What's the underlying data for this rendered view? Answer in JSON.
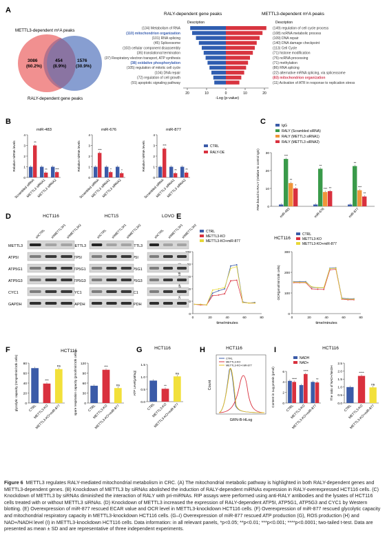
{
  "panels": {
    "A": "A",
    "B": "B",
    "C": "C",
    "D": "D",
    "E": "E",
    "F": "F",
    "G": "G",
    "H": "H",
    "I": "I"
  },
  "venn": {
    "label_top": "METTL3-dependent m⁶A peaks",
    "label_bottom": "RALY-dependent gene peaks",
    "left_count": "3086",
    "left_pct": "(60.2%)",
    "mid_count": "454",
    "mid_pct": "(8.9%)",
    "right_count": "1576",
    "right_pct": "(30.9%)",
    "colors": {
      "left": "#f08a8a",
      "right": "#7a93cc"
    }
  },
  "butterfly": {
    "title_left": "RALY-dependent gene peaks",
    "title_right": "METTL3-dependent m⁶A peaks",
    "desc_header": "Description",
    "xlabel": "-Log (p-value)",
    "ticks_left": [
      "20",
      "10",
      "0"
    ],
    "ticks_right": [
      "0",
      "10",
      "20"
    ],
    "highlight_color_left": "#3a5fb0",
    "highlight_color_right": "#d0334a",
    "left_terms": [
      {
        "text": "(134) Metabolism of RNA",
        "v": 18.5,
        "hl": false
      },
      {
        "text": "(110) mitochondrion organization",
        "v": 17.5,
        "hl": true
      },
      {
        "text": "(101) RNA splicing",
        "v": 15.5,
        "hl": false
      },
      {
        "text": "(45) Spliceosome",
        "v": 14.0,
        "hl": false
      },
      {
        "text": "(103) cellular component disassembly",
        "v": 12.5,
        "hl": false
      },
      {
        "text": "(36) translational termination",
        "v": 11.5,
        "hl": false
      },
      {
        "text": "(37) Respiratory electron transport, ATP synthesis",
        "v": 10.5,
        "hl": false
      },
      {
        "text": "(38) oxidative phosphorylation",
        "v": 9.5,
        "hl": true
      },
      {
        "text": "(105) regulation of mitotic cell cycle",
        "v": 8.5,
        "hl": false
      },
      {
        "text": "(104) DNA repair",
        "v": 7.5,
        "hl": false
      },
      {
        "text": "(72) regulation of cell growth",
        "v": 6.5,
        "hl": false
      },
      {
        "text": "(91) apoptotic signaling pathway",
        "v": 6.0,
        "hl": false
      }
    ],
    "right_terms": [
      {
        "text": "(149) regulation of cell cycle process",
        "v": 21.0,
        "hl": false
      },
      {
        "text": "(108) ncRNA metabolic process",
        "v": 19.0,
        "hl": false
      },
      {
        "text": "(109) DNA repair",
        "v": 17.5,
        "hl": false
      },
      {
        "text": "(140) DNA damage checkpoint",
        "v": 16.0,
        "hl": false
      },
      {
        "text": "(113) Cell Cycle",
        "v": 15.0,
        "hl": false
      },
      {
        "text": "(71) histone modification",
        "v": 14.0,
        "hl": false
      },
      {
        "text": "(75) ncRNA processing",
        "v": 12.5,
        "hl": false
      },
      {
        "text": "(71) methylation",
        "v": 11.5,
        "hl": false
      },
      {
        "text": "(86) RNA splicing",
        "v": 10.5,
        "hl": false
      },
      {
        "text": "(22) alternative mRNA splicing, via spliceosome",
        "v": 9.5,
        "hl": false
      },
      {
        "text": "(83) mitochondrion organization",
        "v": 8.0,
        "hl": true
      },
      {
        "text": "(11) Activation of ATR in response to replication stress",
        "v": 7.0,
        "hl": false
      }
    ]
  },
  "chart_data": [
    {
      "panel": "B",
      "type": "bar",
      "title": "miR-483",
      "ylabel": "Relative miRNA levels",
      "ylim": [
        0,
        4
      ],
      "ticks": [
        "0",
        "1",
        "2",
        "3",
        "4"
      ],
      "categories": [
        "Scrambled siRNA",
        "METTL3 siRNA1",
        "METTL3 siRNA2"
      ],
      "series": [
        {
          "name": "CTRL",
          "values": [
            1.0,
            1.0,
            1.0
          ]
        },
        {
          "name": "RALY-OE",
          "values": [
            3.0,
            0.45,
            0.5
          ]
        }
      ],
      "sig": [
        "**",
        "**",
        "***",
        "*"
      ]
    },
    {
      "panel": "B",
      "type": "bar",
      "title": "miR-676",
      "ylabel": "Relative miRNA levels",
      "ylim": [
        0,
        4
      ],
      "ticks": [
        "0",
        "1",
        "2",
        "3",
        "4"
      ],
      "categories": [
        "Scrambled siRNA",
        "METTL3 siRNA1",
        "METTL3 siRNA2"
      ],
      "series": [
        {
          "name": "CTRL",
          "values": [
            1.0,
            1.0,
            1.0
          ]
        },
        {
          "name": "RALY-OE",
          "values": [
            2.3,
            0.5,
            0.4
          ]
        }
      ],
      "sig": [
        "***",
        "*",
        "*",
        "**"
      ]
    },
    {
      "panel": "B",
      "type": "bar",
      "title": "miR-877",
      "ylabel": "Relative miRNA levels",
      "ylim": [
        0,
        4
      ],
      "ticks": [
        "0",
        "1",
        "2",
        "3",
        "4"
      ],
      "categories": [
        "Scrambled siRNA",
        "METTL3 siRNA1",
        "METTL3 siRNA2"
      ],
      "series": [
        {
          "name": "CTRL",
          "values": [
            1.0,
            1.0,
            1.0
          ]
        },
        {
          "name": "RALY-OE",
          "values": [
            2.7,
            0.4,
            0.45
          ]
        }
      ],
      "sig": [
        "***",
        "**",
        "**",
        "***"
      ]
    },
    {
      "panel": "C",
      "type": "bar",
      "ylabel": "RNA bound to RALY (relative to control IgG)",
      "ylim": [
        0,
        30
      ],
      "ticks": [
        "0",
        "10",
        "20",
        "30"
      ],
      "categories": [
        "miR-483",
        "miR-676",
        "miR-877"
      ],
      "series": [
        {
          "name": "IgG",
          "values": [
            1,
            1,
            1
          ]
        },
        {
          "name": "RALY (Scrambled siRNA)",
          "values": [
            26.5,
            21,
            22.5
          ]
        },
        {
          "name": "RALY (METTL3 siRNA1)",
          "values": [
            13,
            8,
            9
          ]
        },
        {
          "name": "RALY (METTL3 siRNA2)",
          "values": [
            10,
            8.5,
            5.5
          ]
        }
      ],
      "sig": [
        "***",
        "**",
        "*",
        "**",
        "***",
        "**",
        "**",
        "***",
        "**"
      ]
    },
    {
      "panel": "E",
      "type": "line",
      "title": "HCT116",
      "xlabel": "time/minutes",
      "ylabel": "ECAR(mmpH/min/10k cells)",
      "xlim": [
        0,
        80
      ],
      "ylim": [
        0,
        100
      ],
      "xticks": [
        "0",
        "20",
        "40",
        "60",
        "80"
      ],
      "yticks": [
        "0",
        "20",
        "40",
        "60",
        "80",
        "100"
      ],
      "x": [
        2,
        9,
        16,
        23,
        30,
        37,
        44,
        51,
        58,
        65,
        72
      ],
      "series": [
        {
          "name": "CTRL",
          "values": [
            15,
            15,
            14,
            33,
            37,
            40,
            77,
            79,
            19,
            17,
            18
          ]
        },
        {
          "name": "METTL3-KO",
          "values": [
            15,
            14,
            14,
            29,
            30,
            32,
            53,
            54,
            18,
            17,
            17
          ]
        },
        {
          "name": "METTL3-KO+miR-877",
          "values": [
            15,
            15,
            14,
            38,
            40,
            42,
            73,
            76,
            18,
            17,
            17
          ]
        }
      ]
    },
    {
      "panel": "E",
      "type": "line",
      "xlabel": "time/minutes",
      "ylabel": "OCR(pmol/min/10k cells)",
      "xlim": [
        0,
        80
      ],
      "ylim": [
        0,
        300
      ],
      "xticks": [
        "0",
        "20",
        "40",
        "60",
        "80"
      ],
      "yticks": [
        "0",
        "100",
        "200",
        "300"
      ],
      "x": [
        2,
        9,
        16,
        23,
        30,
        37,
        44,
        51,
        58,
        65,
        72
      ],
      "series": [
        {
          "name": "CTRL",
          "values": [
            155,
            155,
            155,
            128,
            125,
            125,
            220,
            222,
            75,
            72,
            72
          ]
        },
        {
          "name": "METTL3-KO",
          "values": [
            150,
            150,
            150,
            120,
            118,
            117,
            212,
            215,
            70,
            67,
            67
          ]
        },
        {
          "name": "METTL3-KO+miR-877",
          "values": [
            153,
            152,
            152,
            130,
            126,
            126,
            218,
            220,
            72,
            70,
            70
          ]
        }
      ]
    },
    {
      "panel": "F",
      "type": "bar",
      "ylabel": "glycolytic capacity (mmpH/min/10k cells)",
      "ylim": [
        0,
        80
      ],
      "ticks": [
        "0",
        "20",
        "40",
        "60",
        "80"
      ],
      "categories": [
        "CTRL",
        "METTL3-KO",
        "METTL3-KO+miR-877"
      ],
      "values": [
        70,
        39,
        68
      ],
      "colors": [
        "#3b5ba8",
        "#d9313e",
        "#f2e03a"
      ],
      "sig": [
        "",
        "***",
        "ns"
      ]
    },
    {
      "panel": "F",
      "type": "bar",
      "ylabel": "spare respiration capacity (pmol/min/10k cells)",
      "ylim": [
        0,
        120
      ],
      "ticks": [
        "0",
        "30",
        "60",
        "90",
        "120"
      ],
      "categories": [
        "CTRL",
        "METTL3-KO",
        "METTL3-KO+miR-877"
      ],
      "values": [
        52,
        100,
        45
      ],
      "colors": [
        "#3b5ba8",
        "#d9313e",
        "#f2e03a"
      ],
      "sig": [
        "",
        "***",
        "ns"
      ]
    },
    {
      "panel": "G",
      "type": "bar",
      "title": "HCT116",
      "ylabel": "ATP Level(μM/ug)",
      "ylim": [
        0,
        1.5
      ],
      "ticks": [
        "0.0",
        "0.5",
        "1.0",
        "1.5"
      ],
      "categories": [
        "CTRL",
        "METTL3-KO",
        "METTL3-KO+miR-877"
      ],
      "values": [
        0.85,
        0.52,
        1.02
      ],
      "colors": [
        "#3b5ba8",
        "#d9313e",
        "#f2e03a"
      ],
      "sig": [
        "",
        "**",
        "ns"
      ]
    },
    {
      "panel": "H",
      "type": "line",
      "title": "HCT116",
      "xlabel": "GRN-B-HLog",
      "ylabel": "Count",
      "series": [
        {
          "name": "CTRL"
        },
        {
          "name": "METTL3-KO"
        },
        {
          "name": "METTL3-KO+miR-877"
        }
      ]
    },
    {
      "panel": "I",
      "type": "bar",
      "ylabel": "Content in 1ug protein (pmol)",
      "ylim": [
        0,
        6
      ],
      "ticks": [
        "0",
        "2",
        "4",
        "6"
      ],
      "categories": [
        "CTRL",
        "METTL3-KO",
        "METTL3-KO+miR-877"
      ],
      "series": [
        {
          "name": "NADH",
          "values": [
            4.2,
            3.4,
            4.0
          ]
        },
        {
          "name": "NAD+",
          "values": [
            4.0,
            5.5,
            3.9
          ]
        }
      ],
      "sig": [
        "****",
        "****",
        "**",
        "**"
      ]
    },
    {
      "panel": "I",
      "type": "bar",
      "ylabel": "The ratio of NAD+/NADH",
      "ylim": [
        0,
        2.5
      ],
      "ticks": [
        "0.0",
        "0.5",
        "1.0",
        "1.5",
        "2.0",
        "2.5"
      ],
      "categories": [
        "CTRL",
        "METTL3-KO",
        "METTL3-KO+miR-877"
      ],
      "values": [
        1.0,
        1.7,
        0.98
      ],
      "colors": [
        "#3b5ba8",
        "#d9313e",
        "#f2e03a"
      ],
      "sig": [
        "",
        "****",
        "ns"
      ]
    }
  ],
  "legends": {
    "B": [
      {
        "name": "CTRL",
        "color": "#3b5ba8"
      },
      {
        "name": "RALY-OE",
        "color": "#d9313e"
      }
    ],
    "C": [
      {
        "name": "IgG",
        "color": "#3b5ba8"
      },
      {
        "name": "RALY (Scrambled siRNA)",
        "color": "#3a9a4a"
      },
      {
        "name": "RALY (METTL3 siRNA1)",
        "color": "#f0953a"
      },
      {
        "name": "RALY (METTL3 siRNA2)",
        "color": "#d9313e"
      }
    ],
    "E": [
      {
        "name": "CTRL",
        "color": "#3b5ba8"
      },
      {
        "name": "METTL3-KO",
        "color": "#d9313e"
      },
      {
        "name": "METTL3-KO+miR-877",
        "color": "#e8d838"
      }
    ],
    "H": [
      {
        "name": "CTRL",
        "color": "#3b5ba8"
      },
      {
        "name": "METTL3-KO",
        "color": "#d9313e"
      },
      {
        "name": "METTL3-KO+miR-877",
        "color": "#e8c020"
      }
    ],
    "I": [
      {
        "name": "NADH",
        "color": "#3b5ba8"
      },
      {
        "name": "NAD+",
        "color": "#d9313e"
      }
    ]
  },
  "panel_titles": {
    "F": "HCT116",
    "G": "HCT116",
    "H": "HCT116",
    "I": "HCT116",
    "E": "HCT116"
  },
  "western": {
    "groups": [
      {
        "title": "HCT116",
        "lanes": [
          "shCTRL",
          "shMETTL3#1",
          "shMETTL3#2"
        ]
      },
      {
        "title": "HCT15",
        "lanes": [
          "shCTRL",
          "shMETTL3#1",
          "shMETTL3#2"
        ]
      },
      {
        "title": "LOVO",
        "lanes": [
          "shCTRL",
          "shMETTL3#1",
          "shMETTL3#2"
        ]
      }
    ],
    "proteins": [
      "METTL3",
      "ATP5I",
      "ATP5G1",
      "ATP5G3",
      "CYC1",
      "GAPDH"
    ]
  },
  "caption": {
    "fig_label": "Figure 6",
    "title": "METTL3 regulates RALY-mediated mitochondrial metabolism in CRC.",
    "body": " (A) The mitochondrial metabolic pathway is highlighted in both RALY-dependent genes and METTL3-dependent genes. (B) Knockdown of METTL3 by siRNAs abolished the induction of RALY-dependent miRNAs expression in RALY-overexpressed HCT116 cells. (C) Knockdown of METTL3 by siRNAs diminished the interaction of RALY with pri-miRNAs. RIP assays were performed using anti-RALY antibodies and the lysates of HCT116 cells treated with or without METTL3 siRNAs. (D) Knockdown of METTL3 increased the expression of RALY-dependent ATP5I, ATP5G1, ATP5G3 and CYC1 by Western blotting. (E) Overexpression of miR-877 rescued ECAR value and OCR level in METTL3-knockdown HCT116 cells. (F) Overexpression of miR-877 rescued glycolytic capacity and mitochondrial respiratory capacity in METTL3-knockdown HCT116 cells. (G–I) Overexpression of miR-877 rescued ATP production (G), ROS production (H) and NAD+/NADH level (I) in METTL3-knockdown HCT116 cells. Data information: in all relevant panels, *p<0.05; **p<0.01; ***p<0.001; ****p<0.0001; two-tailed t-test. Data are presented as mean ± SD and are representative of three independent experiments."
  }
}
